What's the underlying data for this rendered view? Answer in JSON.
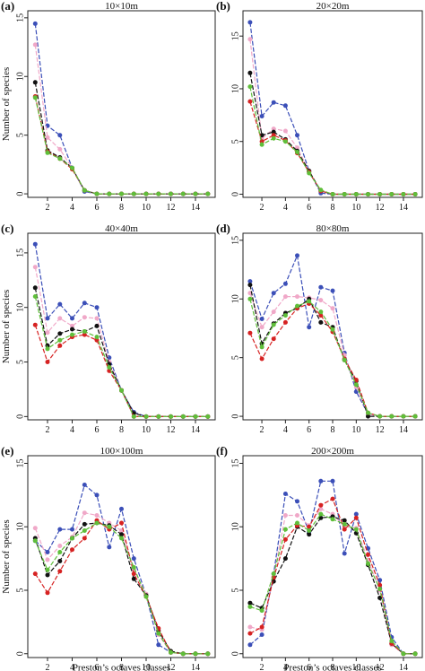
{
  "colors": {
    "blue": "#3b4fb8",
    "pink": "#f0a8c8",
    "black": "#111111",
    "red": "#d62222",
    "green": "#5fbf3a"
  },
  "chart_data": [
    {
      "type": "line",
      "panel": "(a)",
      "title": "10×10m",
      "ylabel": "Number of species",
      "xlabel": "",
      "xlim": [
        0.4,
        15.6
      ],
      "ylim": [
        -0.3,
        15.6
      ],
      "xticks": [
        2,
        4,
        6,
        8,
        10,
        12,
        14
      ],
      "yticks": [
        0,
        5,
        10,
        15
      ],
      "x": [
        1,
        2,
        3,
        4,
        5,
        6,
        7,
        8,
        9,
        10,
        11,
        12,
        13,
        14,
        15
      ],
      "series": [
        {
          "color": "blue",
          "values": [
            14.5,
            5.8,
            5,
            2.2,
            0.2,
            0,
            0,
            0,
            0,
            0,
            0,
            0,
            0,
            0,
            0
          ]
        },
        {
          "color": "pink",
          "values": [
            12.7,
            4.8,
            3.8,
            2.2,
            0.3,
            0,
            0,
            0,
            0,
            0,
            0,
            0,
            0,
            0,
            0
          ]
        },
        {
          "color": "black",
          "values": [
            9.5,
            3.7,
            3.1,
            2.2,
            0.3,
            0,
            0,
            0,
            0,
            0,
            0,
            0,
            0,
            0,
            0
          ]
        },
        {
          "color": "red",
          "values": [
            8.3,
            3.6,
            3,
            2.1,
            0.3,
            0,
            0,
            0,
            0,
            0,
            0,
            0,
            0,
            0,
            0
          ]
        },
        {
          "color": "green",
          "values": [
            8.2,
            3.5,
            3,
            2.2,
            0.3,
            0,
            0,
            0,
            0,
            0,
            0,
            0,
            0,
            0,
            0
          ]
        }
      ]
    },
    {
      "type": "line",
      "panel": "(b)",
      "title": "20×20m",
      "ylabel": "",
      "xlabel": "",
      "xlim": [
        0.4,
        15.6
      ],
      "ylim": [
        -0.3,
        17.4
      ],
      "xticks": [
        2,
        4,
        6,
        8,
        10,
        12,
        14
      ],
      "yticks": [
        0,
        5,
        10,
        15
      ],
      "x": [
        1,
        2,
        3,
        4,
        5,
        6,
        7,
        8,
        9,
        10,
        11,
        12,
        13,
        14,
        15
      ],
      "series": [
        {
          "color": "blue",
          "values": [
            16.3,
            7.4,
            8.7,
            8.4,
            5.6,
            2.2,
            0.1,
            0,
            0,
            0,
            0,
            0,
            0,
            0,
            0
          ]
        },
        {
          "color": "pink",
          "values": [
            14.7,
            5.3,
            6.2,
            6,
            4.4,
            2.2,
            0.3,
            0,
            0,
            0,
            0,
            0,
            0,
            0,
            0
          ]
        },
        {
          "color": "black",
          "values": [
            11.5,
            5.6,
            5.9,
            5.2,
            4.1,
            2.2,
            0.3,
            0,
            0,
            0,
            0,
            0,
            0,
            0,
            0
          ]
        },
        {
          "color": "red",
          "values": [
            8.8,
            5,
            5.6,
            5.1,
            3.9,
            2.1,
            0.3,
            0,
            0,
            0,
            0,
            0,
            0,
            0,
            0
          ]
        },
        {
          "color": "green",
          "values": [
            10.2,
            4.7,
            5.3,
            5,
            4,
            2,
            0.4,
            0,
            0,
            0,
            0,
            0,
            0,
            0,
            0
          ]
        }
      ]
    },
    {
      "type": "line",
      "panel": "(c)",
      "title": "40×40m",
      "ylabel": "Number of species",
      "xlabel": "",
      "xlim": [
        0.4,
        15.6
      ],
      "ylim": [
        -0.3,
        16.8
      ],
      "xticks": [
        2,
        4,
        6,
        8,
        10,
        12,
        14
      ],
      "yticks": [
        0,
        5,
        10,
        15
      ],
      "x": [
        1,
        2,
        3,
        4,
        5,
        6,
        7,
        8,
        9,
        10,
        11,
        12,
        13,
        14,
        15
      ],
      "series": [
        {
          "color": "blue",
          "values": [
            15.8,
            9,
            10.3,
            9,
            10.4,
            10,
            5.4,
            2.4,
            0.4,
            0,
            0,
            0,
            0,
            0,
            0
          ]
        },
        {
          "color": "pink",
          "values": [
            13.7,
            7.7,
            9,
            8.3,
            9.1,
            9,
            5,
            2.4,
            0.3,
            0,
            0,
            0,
            0,
            0,
            0
          ]
        },
        {
          "color": "black",
          "values": [
            11.8,
            6.5,
            7.6,
            8,
            7.8,
            8.3,
            4.8,
            2.4,
            0.3,
            0,
            0,
            0,
            0,
            0,
            0
          ]
        },
        {
          "color": "red",
          "values": [
            8.4,
            5,
            6.5,
            7.3,
            7.5,
            7,
            4.2,
            2.4,
            0,
            0,
            0,
            0,
            0,
            0,
            0
          ]
        },
        {
          "color": "green",
          "values": [
            11,
            6.2,
            7,
            7.5,
            7.8,
            7.3,
            4.5,
            2.4,
            0,
            0,
            0,
            0,
            0,
            0,
            0
          ]
        }
      ]
    },
    {
      "type": "line",
      "panel": "(d)",
      "title": "80×80m",
      "ylabel": "",
      "xlabel": "",
      "xlim": [
        0.4,
        15.6
      ],
      "ylim": [
        -0.3,
        15.6
      ],
      "xticks": [
        2,
        4,
        6,
        8,
        10,
        12,
        14
      ],
      "yticks": [
        0,
        5,
        10,
        15
      ],
      "x": [
        1,
        2,
        3,
        4,
        5,
        6,
        7,
        8,
        9,
        10,
        11,
        12,
        13,
        14,
        15
      ],
      "series": [
        {
          "color": "blue",
          "values": [
            11.5,
            8.3,
            10.5,
            11.3,
            13.7,
            7.6,
            11,
            10.7,
            5.4,
            2.1,
            0.2,
            0,
            0,
            0,
            0
          ]
        },
        {
          "color": "pink",
          "values": [
            10.5,
            7.6,
            8.9,
            10.2,
            10.2,
            10.1,
            9.9,
            9.2,
            5.2,
            2.5,
            0.2,
            0,
            0,
            0,
            0
          ]
        },
        {
          "color": "black",
          "values": [
            11.2,
            6.2,
            7.9,
            8.8,
            9.2,
            10,
            8,
            7.6,
            4.8,
            3,
            0,
            0,
            0,
            0,
            0
          ]
        },
        {
          "color": "red",
          "values": [
            7.1,
            4.9,
            6.6,
            8,
            9.2,
            9.6,
            8.6,
            7.2,
            4.9,
            3.1,
            0.3,
            0,
            0,
            0,
            0
          ]
        },
        {
          "color": "green",
          "values": [
            10,
            5.9,
            7.8,
            8.6,
            9.4,
            9.8,
            8.9,
            7.4,
            4.8,
            2.7,
            0.3,
            0,
            0,
            0,
            0
          ]
        }
      ]
    },
    {
      "type": "line",
      "panel": "(e)",
      "title": "100×100m",
      "ylabel": "Number of species",
      "xlabel": "Preston’s octaves classes",
      "xlim": [
        0.4,
        15.6
      ],
      "ylim": [
        -0.3,
        15.6
      ],
      "xticks": [
        2,
        4,
        6,
        8,
        10,
        12,
        14
      ],
      "yticks": [
        0,
        5,
        10,
        15
      ],
      "x": [
        1,
        2,
        3,
        4,
        5,
        6,
        7,
        8,
        9,
        10,
        11,
        12,
        13,
        14,
        15
      ],
      "series": [
        {
          "color": "blue",
          "values": [
            8.9,
            8,
            9.8,
            9.8,
            13.3,
            12.5,
            8.4,
            11.4,
            7.5,
            4.6,
            0.7,
            0.1,
            0,
            0,
            0
          ]
        },
        {
          "color": "pink",
          "values": [
            9.9,
            7.4,
            8.5,
            9.2,
            11.1,
            10.9,
            10.3,
            9.7,
            6.6,
            4.7,
            1.5,
            0.1,
            0,
            0,
            0
          ]
        },
        {
          "color": "black",
          "values": [
            9.1,
            6.2,
            7.3,
            9.1,
            10.2,
            10.3,
            10.1,
            9.4,
            5.9,
            4.6,
            1.8,
            0.2,
            0,
            0,
            0
          ]
        },
        {
          "color": "red",
          "values": [
            6.3,
            4.8,
            6.5,
            8.2,
            9.1,
            10.5,
            9.8,
            10.3,
            6.3,
            4.5,
            2,
            0.1,
            0,
            0,
            0
          ]
        },
        {
          "color": "green",
          "values": [
            8.9,
            6.6,
            8,
            9.1,
            9.7,
            10.3,
            10,
            9.1,
            6.8,
            4.5,
            1.6,
            0.1,
            0,
            0,
            0
          ]
        }
      ]
    },
    {
      "type": "line",
      "panel": "(f)",
      "title": "200×200m",
      "ylabel": "",
      "xlabel": "Preston’s octaves classes",
      "xlim": [
        0.4,
        15.6
      ],
      "ylim": [
        -0.3,
        15.6
      ],
      "xticks": [
        2,
        4,
        6,
        8,
        10,
        12,
        14
      ],
      "yticks": [
        0,
        5,
        10,
        15
      ],
      "x": [
        1,
        2,
        3,
        4,
        5,
        6,
        7,
        8,
        9,
        10,
        11,
        12,
        13,
        14,
        15
      ],
      "series": [
        {
          "color": "blue",
          "values": [
            0.7,
            1.5,
            6.3,
            12.6,
            12,
            9.6,
            13.6,
            13.6,
            7.9,
            11,
            8.3,
            5.8,
            1.3,
            0,
            0
          ]
        },
        {
          "color": "pink",
          "values": [
            2.1,
            1.9,
            6.1,
            10.9,
            10.9,
            10.1,
            11.4,
            11,
            10,
            9.9,
            7.4,
            5,
            0.7,
            0,
            0
          ]
        },
        {
          "color": "black",
          "values": [
            4,
            3.6,
            5.7,
            7.5,
            10,
            9.4,
            10.7,
            10.8,
            10.5,
            9.5,
            7,
            4.4,
            0.8,
            0,
            0
          ]
        },
        {
          "color": "red",
          "values": [
            1.6,
            2.1,
            6,
            9,
            10.1,
            10,
            11.7,
            12.2,
            9.8,
            10.7,
            7.8,
            5.4,
            0.8,
            0,
            0
          ]
        },
        {
          "color": "green",
          "values": [
            3.7,
            3.4,
            6.3,
            9.8,
            10.3,
            9.7,
            11,
            10.6,
            10.2,
            9.8,
            7.1,
            5.1,
            1,
            0,
            0
          ]
        }
      ]
    }
  ]
}
